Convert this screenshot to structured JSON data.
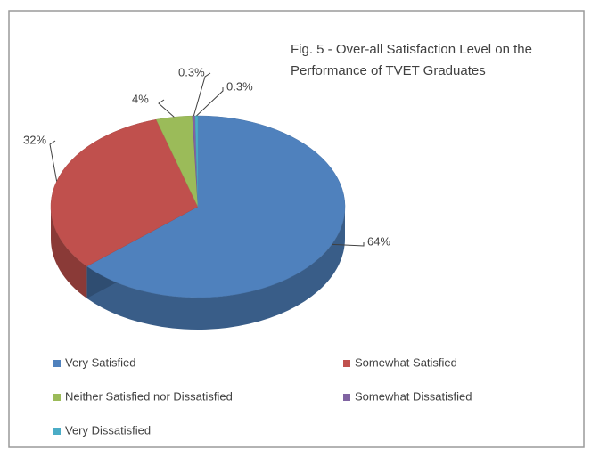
{
  "chart_data": {
    "type": "pie",
    "title": "Fig. 5 - Over-all  Satisfaction Level on the Performance of TVET Graduates",
    "categories": [
      "Very Satisfied",
      "Somewhat Satisfied",
      "Neither Satisfied nor Dissatisfied",
      "Somewhat Dissatisfied",
      "Very Dissatisfied"
    ],
    "values": [
      64,
      32,
      4,
      0.3,
      0.3
    ],
    "value_labels": [
      "64%",
      "32%",
      "4%",
      "0.3%",
      "0.3%"
    ],
    "colors": [
      "#4f81bd",
      "#c0504d",
      "#9bbb59",
      "#8064a2",
      "#4bacc6"
    ],
    "legend": "bottom"
  }
}
